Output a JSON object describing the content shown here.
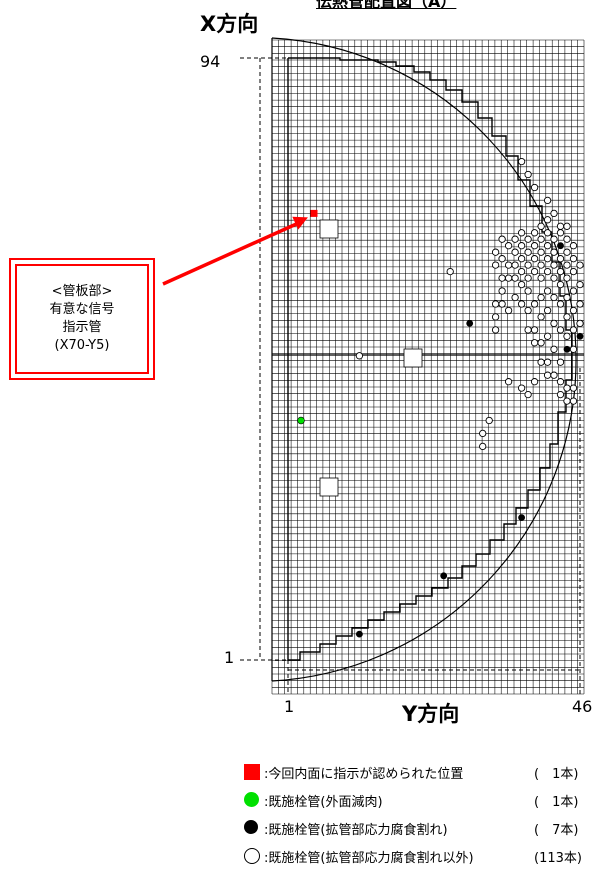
{
  "title_partial": "伝熱管配置図（A）",
  "axis": {
    "x_label": "X方向",
    "y_label": "Y方向",
    "x_min_label": "1",
    "x_max_label": "94",
    "y_min_label": "1",
    "y_max_label": "46"
  },
  "callout": {
    "line1": "<管板部>",
    "line2": "有意な信号",
    "line3": "指示管",
    "line4": "(X70-Y5)"
  },
  "legend": [
    {
      "symbol": "red-square",
      "label": ":今回内面に指示が認められた位置",
      "count": "(　1本)"
    },
    {
      "symbol": "green-circle",
      "label": ":既施栓管(外面減肉)",
      "count": "(　1本)"
    },
    {
      "symbol": "black-circle",
      "label": ":既施栓管(拡管部応力腐食割れ)",
      "count": "(　7本)"
    },
    {
      "symbol": "open-circle",
      "label": ":既施栓管(拡管部応力腐食割れ以外)",
      "count": "(113本)"
    }
  ],
  "colors": {
    "indication": "#ff0000",
    "external_thinning": "#00e000",
    "scc": "#000000"
  },
  "markers": {
    "indication": [
      {
        "y": 5,
        "x": 70
      }
    ],
    "green": [
      {
        "y": 3,
        "x": 38
      }
    ],
    "black": [
      {
        "y": 12,
        "x": 5
      },
      {
        "y": 25,
        "x": 14
      },
      {
        "y": 29,
        "x": 53
      },
      {
        "y": 37,
        "x": 23
      },
      {
        "y": 43,
        "x": 65
      },
      {
        "y": 44,
        "x": 49
      },
      {
        "y": 46,
        "x": 51
      }
    ],
    "open": [
      {
        "y": 12,
        "x": 48
      },
      {
        "y": 26,
        "x": 61
      },
      {
        "y": 31,
        "x": 36
      },
      {
        "y": 31,
        "x": 34
      },
      {
        "y": 32,
        "x": 38
      },
      {
        "y": 33,
        "x": 64
      },
      {
        "y": 33,
        "x": 62
      },
      {
        "y": 33,
        "x": 56
      },
      {
        "y": 33,
        "x": 54
      },
      {
        "y": 33,
        "x": 52
      },
      {
        "y": 34,
        "x": 66
      },
      {
        "y": 34,
        "x": 63
      },
      {
        "y": 34,
        "x": 60
      },
      {
        "y": 34,
        "x": 58
      },
      {
        "y": 34,
        "x": 56
      },
      {
        "y": 35,
        "x": 65
      },
      {
        "y": 35,
        "x": 62
      },
      {
        "y": 35,
        "x": 60
      },
      {
        "y": 35,
        "x": 55
      },
      {
        "y": 35,
        "x": 44
      },
      {
        "y": 36,
        "x": 66
      },
      {
        "y": 36,
        "x": 64
      },
      {
        "y": 36,
        "x": 62
      },
      {
        "y": 36,
        "x": 60
      },
      {
        "y": 36,
        "x": 57
      },
      {
        "y": 37,
        "x": 67
      },
      {
        "y": 37,
        "x": 65
      },
      {
        "y": 37,
        "x": 63
      },
      {
        "y": 37,
        "x": 61
      },
      {
        "y": 37,
        "x": 59
      },
      {
        "y": 37,
        "x": 56
      },
      {
        "y": 38,
        "x": 66
      },
      {
        "y": 38,
        "x": 64
      },
      {
        "y": 38,
        "x": 62
      },
      {
        "y": 38,
        "x": 60
      },
      {
        "y": 38,
        "x": 58
      },
      {
        "y": 38,
        "x": 55
      },
      {
        "y": 39,
        "x": 67
      },
      {
        "y": 39,
        "x": 65
      },
      {
        "y": 39,
        "x": 63
      },
      {
        "y": 39,
        "x": 61
      },
      {
        "y": 39,
        "x": 56
      },
      {
        "y": 39,
        "x": 52
      },
      {
        "y": 40,
        "x": 68
      },
      {
        "y": 40,
        "x": 66
      },
      {
        "y": 40,
        "x": 64
      },
      {
        "y": 40,
        "x": 62
      },
      {
        "y": 40,
        "x": 60
      },
      {
        "y": 40,
        "x": 57
      },
      {
        "y": 40,
        "x": 54
      },
      {
        "y": 40,
        "x": 50
      },
      {
        "y": 41,
        "x": 69
      },
      {
        "y": 41,
        "x": 67
      },
      {
        "y": 41,
        "x": 65
      },
      {
        "y": 41,
        "x": 63
      },
      {
        "y": 41,
        "x": 61
      },
      {
        "y": 41,
        "x": 58
      },
      {
        "y": 41,
        "x": 55
      },
      {
        "y": 41,
        "x": 51
      },
      {
        "y": 41,
        "x": 47
      },
      {
        "y": 42,
        "x": 66
      },
      {
        "y": 42,
        "x": 64
      },
      {
        "y": 42,
        "x": 62
      },
      {
        "y": 42,
        "x": 60
      },
      {
        "y": 42,
        "x": 57
      },
      {
        "y": 42,
        "x": 53
      },
      {
        "y": 42,
        "x": 49
      },
      {
        "y": 43,
        "x": 67
      },
      {
        "y": 43,
        "x": 63
      },
      {
        "y": 43,
        "x": 61
      },
      {
        "y": 43,
        "x": 59
      },
      {
        "y": 43,
        "x": 56
      },
      {
        "y": 43,
        "x": 52
      },
      {
        "y": 43,
        "x": 47
      },
      {
        "y": 44,
        "x": 66
      },
      {
        "y": 44,
        "x": 64
      },
      {
        "y": 44,
        "x": 62
      },
      {
        "y": 44,
        "x": 60
      },
      {
        "y": 44,
        "x": 57
      },
      {
        "y": 44,
        "x": 54
      },
      {
        "y": 44,
        "x": 51
      },
      {
        "y": 45,
        "x": 65
      },
      {
        "y": 45,
        "x": 63
      },
      {
        "y": 45,
        "x": 61
      },
      {
        "y": 45,
        "x": 58
      },
      {
        "y": 45,
        "x": 55
      },
      {
        "y": 45,
        "x": 52
      },
      {
        "y": 45,
        "x": 49
      },
      {
        "y": 46,
        "x": 62
      },
      {
        "y": 46,
        "x": 59
      },
      {
        "y": 46,
        "x": 56
      },
      {
        "y": 46,
        "x": 53
      },
      {
        "y": 37,
        "x": 78
      },
      {
        "y": 38,
        "x": 76
      },
      {
        "y": 39,
        "x": 74
      },
      {
        "y": 41,
        "x": 72
      },
      {
        "y": 42,
        "x": 70
      },
      {
        "y": 43,
        "x": 68
      },
      {
        "y": 44,
        "x": 68
      },
      {
        "y": 38,
        "x": 52
      },
      {
        "y": 39,
        "x": 50
      },
      {
        "y": 40,
        "x": 47
      },
      {
        "y": 41,
        "x": 45
      },
      {
        "y": 42,
        "x": 45
      },
      {
        "y": 43,
        "x": 44
      },
      {
        "y": 43,
        "x": 42
      },
      {
        "y": 44,
        "x": 43
      },
      {
        "y": 45,
        "x": 43
      },
      {
        "y": 44,
        "x": 41
      },
      {
        "y": 45,
        "x": 41
      },
      {
        "y": 38,
        "x": 42
      },
      {
        "y": 37,
        "x": 43
      },
      {
        "y": 39,
        "x": 44
      }
    ]
  }
}
